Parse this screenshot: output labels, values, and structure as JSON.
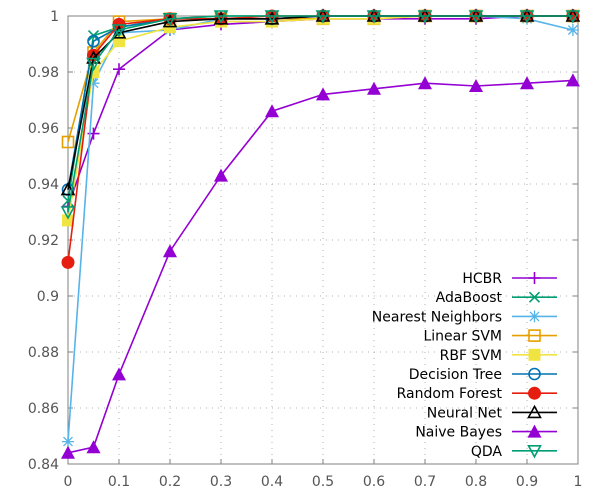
{
  "chart_data": {
    "type": "line",
    "title": "",
    "xlabel": "",
    "ylabel": "",
    "xlim": [
      0,
      1
    ],
    "ylim": [
      0.84,
      1
    ],
    "grid": true,
    "legend_position": "bottom-right",
    "x_ticks": [
      "0",
      "0.1",
      "0.2",
      "0.3",
      "0.4",
      "0.5",
      "0.6",
      "0.7",
      "0.8",
      "0.9",
      "1"
    ],
    "y_ticks": [
      "0.84",
      "0.86",
      "0.88",
      "0.9",
      "0.92",
      "0.94",
      "0.96",
      "0.98",
      "1"
    ],
    "x": [
      0,
      0.05,
      0.1,
      0.2,
      0.3,
      0.4,
      0.5,
      0.6,
      0.7,
      0.8,
      0.9,
      0.99
    ],
    "series": [
      {
        "name": "HCBR",
        "color": "#9400d3",
        "marker": "plus",
        "values": [
          0.932,
          0.958,
          0.981,
          0.995,
          0.997,
          0.998,
          0.999,
          0.999,
          0.999,
          0.999,
          1.0,
          1.0
        ]
      },
      {
        "name": "AdaBoost",
        "color": "#009e73",
        "marker": "x",
        "values": [
          0.934,
          0.993,
          0.996,
          0.999,
          1.0,
          1.0,
          1.0,
          1.0,
          1.0,
          1.0,
          1.0,
          1.0
        ]
      },
      {
        "name": "Nearest Neighbors",
        "color": "#56b4e9",
        "marker": "star",
        "values": [
          0.848,
          0.976,
          0.994,
          0.995,
          0.999,
          0.999,
          1.0,
          1.0,
          1.0,
          1.0,
          0.999,
          0.995
        ]
      },
      {
        "name": "Linear SVM",
        "color": "#e69f00",
        "marker": "open-square",
        "values": [
          0.955,
          0.987,
          0.998,
          0.999,
          0.999,
          0.999,
          0.999,
          0.999,
          1.0,
          1.0,
          1.0,
          1.0
        ]
      },
      {
        "name": "RBF SVM",
        "color": "#f0e442",
        "marker": "filled-square",
        "values": [
          0.927,
          0.98,
          0.991,
          0.996,
          0.998,
          0.998,
          0.999,
          0.999,
          1.0,
          1.0,
          1.0,
          1.0
        ]
      },
      {
        "name": "Decision Tree",
        "color": "#0072b2",
        "marker": "open-circle",
        "values": [
          0.938,
          0.991,
          0.996,
          0.999,
          0.999,
          0.999,
          1.0,
          1.0,
          1.0,
          1.0,
          1.0,
          1.0
        ]
      },
      {
        "name": "Random Forest",
        "color": "#e51e10",
        "marker": "filled-circle",
        "values": [
          0.912,
          0.986,
          0.997,
          0.999,
          0.999,
          1.0,
          1.0,
          1.0,
          1.0,
          1.0,
          1.0,
          1.0
        ]
      },
      {
        "name": "Neural Net",
        "color": "#000000",
        "marker": "open-triangle",
        "values": [
          0.938,
          0.985,
          0.994,
          0.998,
          0.999,
          0.999,
          1.0,
          1.0,
          1.0,
          1.0,
          1.0,
          1.0
        ]
      },
      {
        "name": "Naive Bayes",
        "color": "#9400d3",
        "marker": "filled-triangle",
        "values": [
          0.844,
          0.846,
          0.872,
          0.916,
          0.943,
          0.966,
          0.972,
          0.974,
          0.976,
          0.975,
          0.976,
          0.977
        ]
      },
      {
        "name": "QDA",
        "color": "#009e73",
        "marker": "open-triangle-down",
        "values": [
          0.93,
          0.983,
          0.995,
          0.999,
          1.0,
          1.0,
          1.0,
          1.0,
          1.0,
          1.0,
          1.0,
          1.0
        ]
      }
    ]
  }
}
